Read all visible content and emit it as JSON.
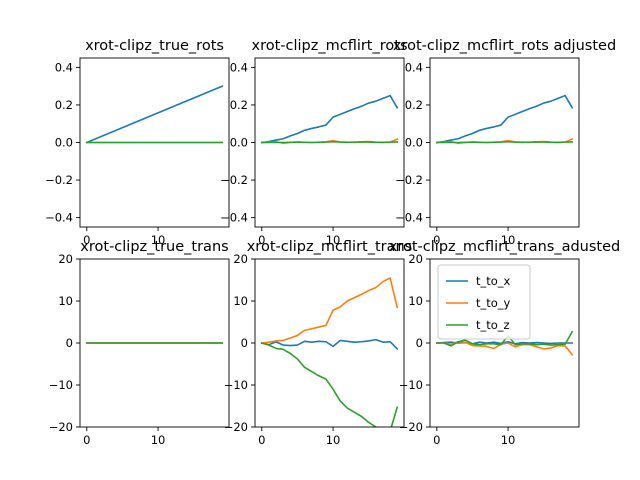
{
  "chart_data": [
    {
      "type": "line",
      "title": "xrot-clipz_true_rots",
      "xlim": [
        -0.95,
        19.95
      ],
      "ylim": [
        -0.45,
        0.45
      ],
      "xticks": [
        0,
        10
      ],
      "yticks": [
        -0.4,
        -0.2,
        0.0,
        0.2,
        0.4
      ],
      "ytick_labels": [
        "−0.4",
        "−0.2",
        "0.0",
        "0.2",
        "0.4"
      ],
      "series": [
        {
          "color": "#1f77b4",
          "x": [
            0,
            19
          ],
          "y": [
            0.0,
            0.3
          ]
        },
        {
          "color": "#ff7f0e",
          "x": [
            0,
            19
          ],
          "y": [
            0.0,
            0.0
          ]
        },
        {
          "color": "#2ca02c",
          "x": [
            0,
            19
          ],
          "y": [
            0.0,
            0.0
          ]
        }
      ]
    },
    {
      "type": "line",
      "title": "xrot-clipz_mcflirt_rots",
      "xlim": [
        -0.95,
        19.95
      ],
      "ylim": [
        -0.45,
        0.45
      ],
      "xticks": [
        0,
        10
      ],
      "yticks": [
        -0.4,
        -0.2,
        0.0,
        0.2,
        0.4
      ],
      "ytick_labels": [
        "−0.4",
        "−0.2",
        "0.0",
        "0.2",
        "0.4"
      ],
      "series": [
        {
          "color": "#1f77b4",
          "x": [
            0,
            1,
            2,
            3,
            4,
            5,
            6,
            7,
            8,
            9,
            10,
            11,
            12,
            13,
            14,
            15,
            16,
            17,
            18,
            19
          ],
          "y": [
            0.0,
            0.005,
            0.013,
            0.02,
            0.035,
            0.048,
            0.065,
            0.075,
            0.083,
            0.093,
            0.135,
            0.15,
            0.165,
            0.18,
            0.193,
            0.21,
            0.22,
            0.235,
            0.25,
            0.185
          ]
        },
        {
          "color": "#ff7f0e",
          "x": [
            0,
            1,
            2,
            3,
            4,
            5,
            6,
            7,
            8,
            9,
            10,
            11,
            12,
            13,
            14,
            15,
            16,
            17,
            18,
            19
          ],
          "y": [
            0.0,
            0.002,
            0.004,
            -0.004,
            0.0,
            0.003,
            0.001,
            0.0,
            0.002,
            0.004,
            0.01,
            0.003,
            0.002,
            0.0,
            0.004,
            0.005,
            0.002,
            0.0,
            0.002,
            0.018
          ]
        },
        {
          "color": "#2ca02c",
          "x": [
            0,
            1,
            2,
            3,
            4,
            5,
            6,
            7,
            8,
            9,
            10,
            11,
            12,
            13,
            14,
            15,
            16,
            17,
            18,
            19
          ],
          "y": [
            0.0,
            0.0,
            0.001,
            0.0,
            0.001,
            0.002,
            0.001,
            0.0,
            0.001,
            0.002,
            0.004,
            0.002,
            0.001,
            0.002,
            0.003,
            0.002,
            0.001,
            0.001,
            0.002,
            0.003
          ]
        }
      ]
    },
    {
      "type": "line",
      "title": "xrot-clipz_mcflirt_rots adjusted",
      "xlim": [
        -0.95,
        19.95
      ],
      "ylim": [
        -0.45,
        0.45
      ],
      "xticks": [
        0,
        10
      ],
      "yticks": [
        -0.4,
        -0.2,
        0.0,
        0.2,
        0.4
      ],
      "ytick_labels": [
        "−0.4",
        "−0.2",
        "0.0",
        "0.2",
        "0.4"
      ],
      "series": [
        {
          "color": "#1f77b4",
          "x": [
            0,
            1,
            2,
            3,
            4,
            5,
            6,
            7,
            8,
            9,
            10,
            11,
            12,
            13,
            14,
            15,
            16,
            17,
            18,
            19
          ],
          "y": [
            0.0,
            0.005,
            0.013,
            0.02,
            0.035,
            0.048,
            0.065,
            0.075,
            0.083,
            0.093,
            0.135,
            0.15,
            0.165,
            0.18,
            0.193,
            0.21,
            0.22,
            0.235,
            0.25,
            0.185
          ]
        },
        {
          "color": "#ff7f0e",
          "x": [
            0,
            1,
            2,
            3,
            4,
            5,
            6,
            7,
            8,
            9,
            10,
            11,
            12,
            13,
            14,
            15,
            16,
            17,
            18,
            19
          ],
          "y": [
            0.0,
            0.002,
            0.004,
            -0.004,
            0.0,
            0.003,
            0.001,
            0.0,
            0.002,
            0.004,
            0.01,
            0.003,
            0.002,
            0.0,
            0.004,
            0.005,
            0.002,
            0.0,
            0.002,
            0.018
          ]
        },
        {
          "color": "#2ca02c",
          "x": [
            0,
            1,
            2,
            3,
            4,
            5,
            6,
            7,
            8,
            9,
            10,
            11,
            12,
            13,
            14,
            15,
            16,
            17,
            18,
            19
          ],
          "y": [
            0.0,
            0.0,
            0.001,
            0.0,
            0.001,
            0.002,
            0.001,
            0.0,
            0.001,
            0.002,
            0.004,
            0.002,
            0.001,
            0.002,
            0.003,
            0.002,
            0.001,
            0.001,
            0.002,
            0.003
          ]
        }
      ]
    },
    {
      "type": "line",
      "title": "xrot-clipz_true_trans",
      "xlim": [
        -0.95,
        19.95
      ],
      "ylim": [
        -20,
        20
      ],
      "xticks": [
        0,
        10
      ],
      "yticks": [
        -20,
        -10,
        0,
        10,
        20
      ],
      "ytick_labels": [
        "−20",
        "−10",
        "0",
        "10",
        "20"
      ],
      "series": [
        {
          "color": "#1f77b4",
          "x": [
            0,
            19
          ],
          "y": [
            0,
            0
          ]
        },
        {
          "color": "#ff7f0e",
          "x": [
            0,
            19
          ],
          "y": [
            0,
            0
          ]
        },
        {
          "color": "#2ca02c",
          "x": [
            0,
            19
          ],
          "y": [
            0,
            0
          ]
        }
      ]
    },
    {
      "type": "line",
      "title": "xrot-clipz_mcflirt_trans",
      "xlim": [
        -0.95,
        19.95
      ],
      "ylim": [
        -20,
        20
      ],
      "xticks": [
        0,
        10
      ],
      "yticks": [
        -20,
        -10,
        0,
        10,
        20
      ],
      "ytick_labels": [
        "−20",
        "−10",
        "0",
        "10",
        "20"
      ],
      "series": [
        {
          "color": "#1f77b4",
          "x": [
            0,
            1,
            2,
            3,
            4,
            5,
            6,
            7,
            8,
            9,
            10,
            11,
            12,
            13,
            14,
            15,
            16,
            17,
            18,
            19
          ],
          "y": [
            0.0,
            -0.4,
            0.3,
            -0.5,
            -0.6,
            -0.5,
            0.4,
            0.2,
            0.4,
            0.3,
            -0.8,
            0.6,
            0.4,
            0.2,
            0.3,
            0.5,
            0.8,
            0.2,
            0.3,
            -1.4
          ]
        },
        {
          "color": "#ff7f0e",
          "x": [
            0,
            1,
            2,
            3,
            4,
            5,
            6,
            7,
            8,
            9,
            10,
            11,
            12,
            13,
            14,
            15,
            16,
            17,
            18,
            19
          ],
          "y": [
            0.0,
            0.2,
            0.5,
            0.6,
            1.2,
            1.8,
            3.0,
            3.4,
            3.8,
            4.2,
            7.8,
            8.6,
            10.0,
            10.8,
            11.6,
            12.5,
            13.2,
            14.6,
            15.5,
            8.5
          ]
        },
        {
          "color": "#2ca02c",
          "x": [
            0,
            1,
            2,
            3,
            4,
            5,
            6,
            7,
            8,
            9,
            10,
            11,
            12,
            13,
            14,
            15,
            16,
            17,
            18,
            19
          ],
          "y": [
            0.0,
            -0.5,
            -1.3,
            -1.5,
            -2.5,
            -3.8,
            -5.8,
            -6.8,
            -7.8,
            -8.6,
            -11.0,
            -13.8,
            -15.5,
            -16.5,
            -17.5,
            -18.9,
            -20.0,
            -20.8,
            -21.0,
            -15.3
          ]
        }
      ]
    },
    {
      "type": "line",
      "title": "xrot-clipz_mcflirt_trans_adusted",
      "xlim": [
        -0.95,
        19.95
      ],
      "ylim": [
        -20,
        20
      ],
      "xticks": [
        0,
        10
      ],
      "yticks": [
        -20,
        -10,
        0,
        10,
        20
      ],
      "ytick_labels": [
        "−20",
        "−10",
        "0",
        "10",
        "20"
      ],
      "legend": {
        "placement": "upper-left",
        "entries": [
          "t_to_x",
          "t_to_y",
          "t_to_z"
        ]
      },
      "series": [
        {
          "name": "t_to_x",
          "color": "#1f77b4",
          "x": [
            0,
            1,
            2,
            3,
            4,
            5,
            6,
            7,
            8,
            9,
            10,
            11,
            12,
            13,
            14,
            15,
            16,
            17,
            18,
            19
          ],
          "y": [
            0.0,
            0.1,
            0.2,
            0.0,
            0.1,
            -0.2,
            0.2,
            0.0,
            0.2,
            -0.1,
            0.3,
            -0.2,
            0.1,
            0.0,
            0.1,
            0.0,
            -0.1,
            0.0,
            0.0,
            0.0
          ]
        },
        {
          "name": "t_to_y",
          "color": "#ff7f0e",
          "x": [
            0,
            1,
            2,
            3,
            4,
            5,
            6,
            7,
            8,
            9,
            10,
            11,
            12,
            13,
            14,
            15,
            16,
            17,
            18,
            19
          ],
          "y": [
            0.0,
            0.0,
            -0.3,
            0.3,
            0.2,
            -0.6,
            -0.7,
            -0.8,
            -1.3,
            -0.3,
            0.0,
            -0.9,
            -0.4,
            -0.4,
            -0.9,
            -1.4,
            -1.2,
            -0.6,
            -0.7,
            -2.8
          ]
        },
        {
          "name": "t_to_z",
          "color": "#2ca02c",
          "x": [
            0,
            1,
            2,
            3,
            4,
            5,
            6,
            7,
            8,
            9,
            10,
            11,
            12,
            13,
            14,
            15,
            16,
            17,
            18,
            19
          ],
          "y": [
            0.0,
            0.0,
            -0.7,
            0.3,
            0.7,
            -0.2,
            -0.4,
            -0.2,
            -0.2,
            -0.4,
            1.7,
            -0.4,
            -0.2,
            -0.2,
            -0.4,
            -0.3,
            -0.5,
            -0.4,
            -0.3,
            2.7
          ]
        }
      ]
    }
  ]
}
